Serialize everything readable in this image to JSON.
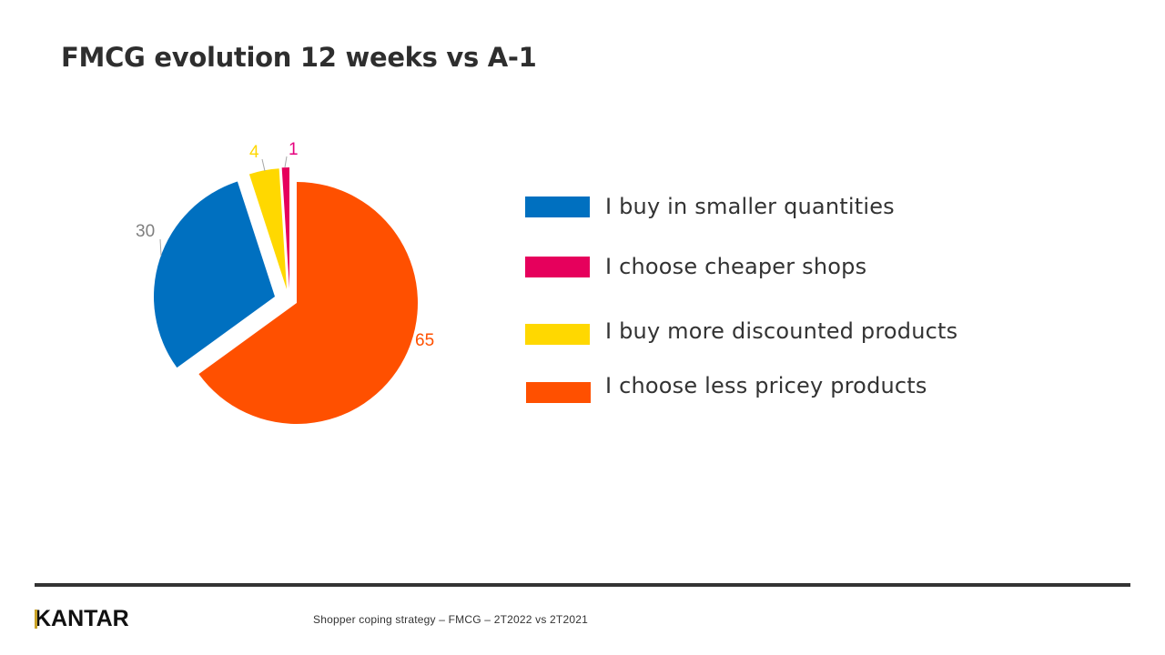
{
  "slide": {
    "title": "FMCG evolution 12 weeks vs A-1",
    "footer_note": "Shopper coping strategy – FMCG – 2T2022  vs  2T2021",
    "logo_text": "KANTAR"
  },
  "legend": [
    {
      "label": "I buy in smaller quantities",
      "color": "#0070C0"
    },
    {
      "label": "I choose cheaper shops",
      "color": "#E6005C"
    },
    {
      "label": "I buy more discounted products",
      "color": "#FFD800"
    },
    {
      "label": "I choose less pricey products",
      "color": "#FF5000"
    }
  ],
  "labels": {
    "orange": "65",
    "blue": "30",
    "yellow": "4",
    "pink": "1"
  },
  "chart_data": {
    "type": "pie",
    "title": "FMCG evolution 12 weeks vs A-1",
    "subtitle": "Shopper coping strategy – FMCG – 2T2022 vs 2T2021",
    "categories": [
      "I choose less pricey products",
      "I buy in smaller quantities",
      "I buy more discounted products",
      "I choose cheaper shops"
    ],
    "values": [
      65,
      30,
      4,
      1
    ],
    "colors": [
      "#FF5000",
      "#0070C0",
      "#FFD800",
      "#E6005C"
    ],
    "exploded": [
      false,
      true,
      true,
      true
    ],
    "start_angle_deg": 0,
    "direction": "clockwise",
    "legend_position": "right",
    "legend_order": [
      "I buy in smaller quantities",
      "I choose cheaper shops",
      "I buy more discounted products",
      "I choose less pricey products"
    ]
  }
}
